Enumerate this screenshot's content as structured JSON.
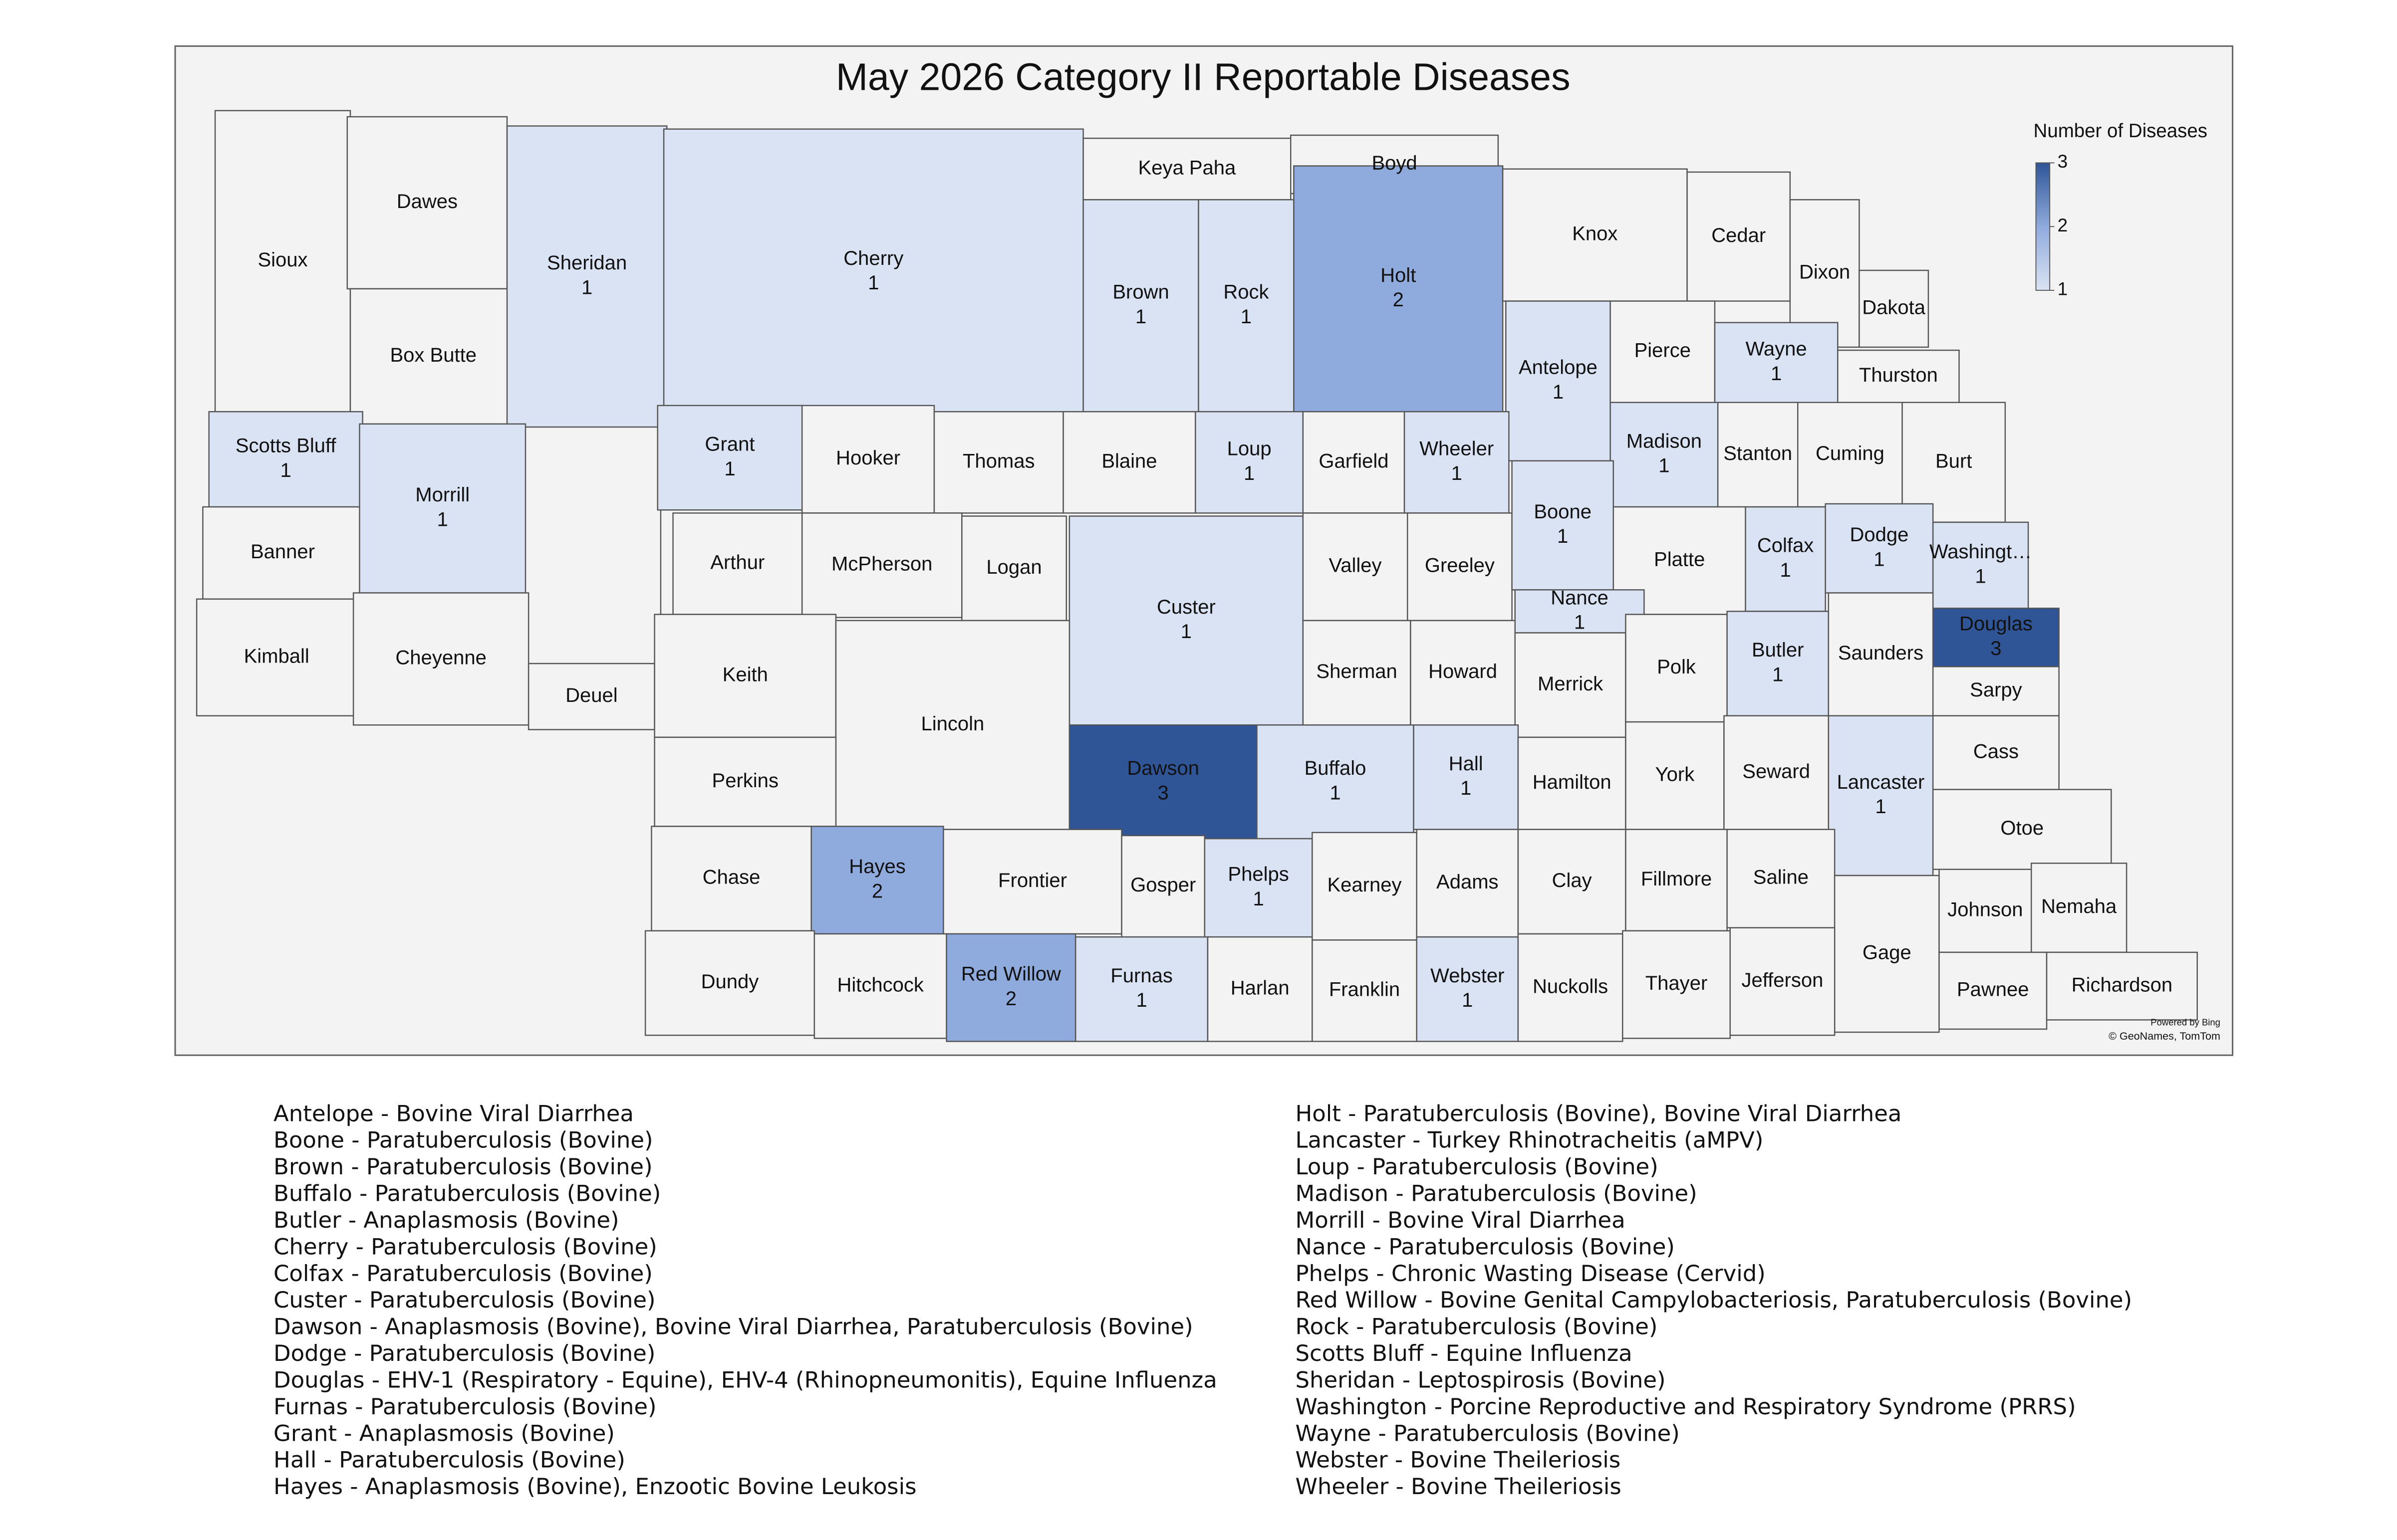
{
  "chart_data": {
    "type": "choropleth",
    "title": "May 2026 Category II Reportable Diseases",
    "regions": [
      {
        "name": "Sioux"
      },
      {
        "name": "Dawes"
      },
      {
        "name": "Box Butte"
      },
      {
        "name": "Sheridan",
        "value": 1
      },
      {
        "name": "Cherry",
        "value": 1
      },
      {
        "name": "Keya Paha"
      },
      {
        "name": "Boyd"
      },
      {
        "name": "Brown",
        "value": 1
      },
      {
        "name": "Rock",
        "value": 1
      },
      {
        "name": "Holt",
        "value": 2
      },
      {
        "name": "Knox"
      },
      {
        "name": "Cedar"
      },
      {
        "name": "Dixon"
      },
      {
        "name": "Dakota"
      },
      {
        "name": "Antelope",
        "value": 1
      },
      {
        "name": "Pierce"
      },
      {
        "name": "Wayne",
        "value": 1
      },
      {
        "name": "Thurston"
      },
      {
        "name": "Scotts Bluff",
        "value": 1
      },
      {
        "name": "Banner"
      },
      {
        "name": "Kimball"
      },
      {
        "name": "Morrill",
        "value": 1
      },
      {
        "name": "Cheyenne"
      },
      {
        "name": "Deuel"
      },
      {
        "name": "Grant",
        "value": 1
      },
      {
        "name": "Hooker"
      },
      {
        "name": "Thomas"
      },
      {
        "name": "Blaine"
      },
      {
        "name": "Loup",
        "value": 1
      },
      {
        "name": "Garfield"
      },
      {
        "name": "Wheeler",
        "value": 1
      },
      {
        "name": "Madison",
        "value": 1
      },
      {
        "name": "Stanton"
      },
      {
        "name": "Cuming"
      },
      {
        "name": "Burt"
      },
      {
        "name": "Arthur"
      },
      {
        "name": "McPherson"
      },
      {
        "name": "Logan"
      },
      {
        "name": "Custer",
        "value": 1
      },
      {
        "name": "Valley"
      },
      {
        "name": "Greeley"
      },
      {
        "name": "Boone",
        "value": 1
      },
      {
        "name": "Platte"
      },
      {
        "name": "Colfax",
        "value": 1
      },
      {
        "name": "Dodge",
        "value": 1
      },
      {
        "name": "Washingt…",
        "value": 1
      },
      {
        "name": "Nance",
        "value": 1
      },
      {
        "name": "Keith"
      },
      {
        "name": "Lincoln"
      },
      {
        "name": "Sherman"
      },
      {
        "name": "Howard"
      },
      {
        "name": "Merrick"
      },
      {
        "name": "Polk"
      },
      {
        "name": "Butler",
        "value": 1
      },
      {
        "name": "Saunders"
      },
      {
        "name": "Douglas",
        "value": 3
      },
      {
        "name": "Sarpy"
      },
      {
        "name": "Perkins"
      },
      {
        "name": "Dawson",
        "value": 3
      },
      {
        "name": "Buffalo",
        "value": 1
      },
      {
        "name": "Hall",
        "value": 1
      },
      {
        "name": "Hamilton"
      },
      {
        "name": "York"
      },
      {
        "name": "Seward"
      },
      {
        "name": "Lancaster",
        "value": 1
      },
      {
        "name": "Cass"
      },
      {
        "name": "Otoe"
      },
      {
        "name": "Chase"
      },
      {
        "name": "Hayes",
        "value": 2
      },
      {
        "name": "Frontier"
      },
      {
        "name": "Gosper"
      },
      {
        "name": "Phelps",
        "value": 1
      },
      {
        "name": "Kearney"
      },
      {
        "name": "Adams"
      },
      {
        "name": "Clay"
      },
      {
        "name": "Fillmore"
      },
      {
        "name": "Saline"
      },
      {
        "name": "Gage"
      },
      {
        "name": "Johnson"
      },
      {
        "name": "Nemaha"
      },
      {
        "name": "Dundy"
      },
      {
        "name": "Hitchcock"
      },
      {
        "name": "Red Willow",
        "value": 2
      },
      {
        "name": "Furnas",
        "value": 1
      },
      {
        "name": "Harlan"
      },
      {
        "name": "Franklin"
      },
      {
        "name": "Webster",
        "value": 1
      },
      {
        "name": "Nuckolls"
      },
      {
        "name": "Thayer"
      },
      {
        "name": "Jefferson"
      },
      {
        "name": "Pawnee"
      },
      {
        "name": "Richardson"
      }
    ],
    "legend": {
      "title": "Number of Diseases",
      "lim": [
        1,
        3
      ],
      "ticks": [
        1,
        2,
        3
      ],
      "colors": [
        "#dae3f3",
        "#8faadc",
        "#2f5597"
      ]
    },
    "no_data_color": "#f3f3f3",
    "attribution": [
      "Powered by Bing",
      "© GeoNames, TomTom"
    ]
  },
  "disease_list": [
    "Antelope - Bovine Viral Diarrhea",
    "Boone - Paratuberculosis (Bovine)",
    "Brown - Paratuberculosis (Bovine)",
    "Buffalo - Paratuberculosis (Bovine)",
    "Butler - Anaplasmosis (Bovine)",
    "Cherry - Paratuberculosis (Bovine)",
    "Colfax - Paratuberculosis (Bovine)",
    "Custer - Paratuberculosis (Bovine)",
    "Dawson - Anaplasmosis (Bovine), Bovine Viral Diarrhea, Paratuberculosis (Bovine)",
    "Dodge - Paratuberculosis (Bovine)",
    "Douglas - EHV-1 (Respiratory - Equine), EHV-4 (Rhinopneumonitis), Equine Influenza",
    "Furnas - Paratuberculosis (Bovine)",
    "Grant - Anaplasmosis (Bovine)",
    "Hall - Paratuberculosis (Bovine)",
    "Hayes - Anaplasmosis (Bovine), Enzootic Bovine Leukosis",
    "Holt - Paratuberculosis (Bovine), Bovine Viral Diarrhea",
    "Lancaster - Turkey Rhinotracheitis (aMPV)",
    "Loup - Paratuberculosis (Bovine)",
    "Madison - Paratuberculosis (Bovine)",
    "Morrill - Bovine Viral Diarrhea",
    "Nance - Paratuberculosis (Bovine)",
    "Phelps - Chronic Wasting Disease (Cervid)",
    "Red Willow - Bovine Genital Campylobacteriosis, Paratuberculosis (Bovine)",
    "Rock - Paratuberculosis (Bovine)",
    "Scotts Bluff - Equine Influenza",
    "Sheridan - Leptospirosis (Bovine)",
    "Washington - Porcine Reproductive and Respiratory Syndrome (PRRS)",
    "Wayne - Paratuberculosis (Bovine)",
    "Webster - Bovine Theileriosis",
    "Wheeler - Bovine Theileriosis"
  ]
}
